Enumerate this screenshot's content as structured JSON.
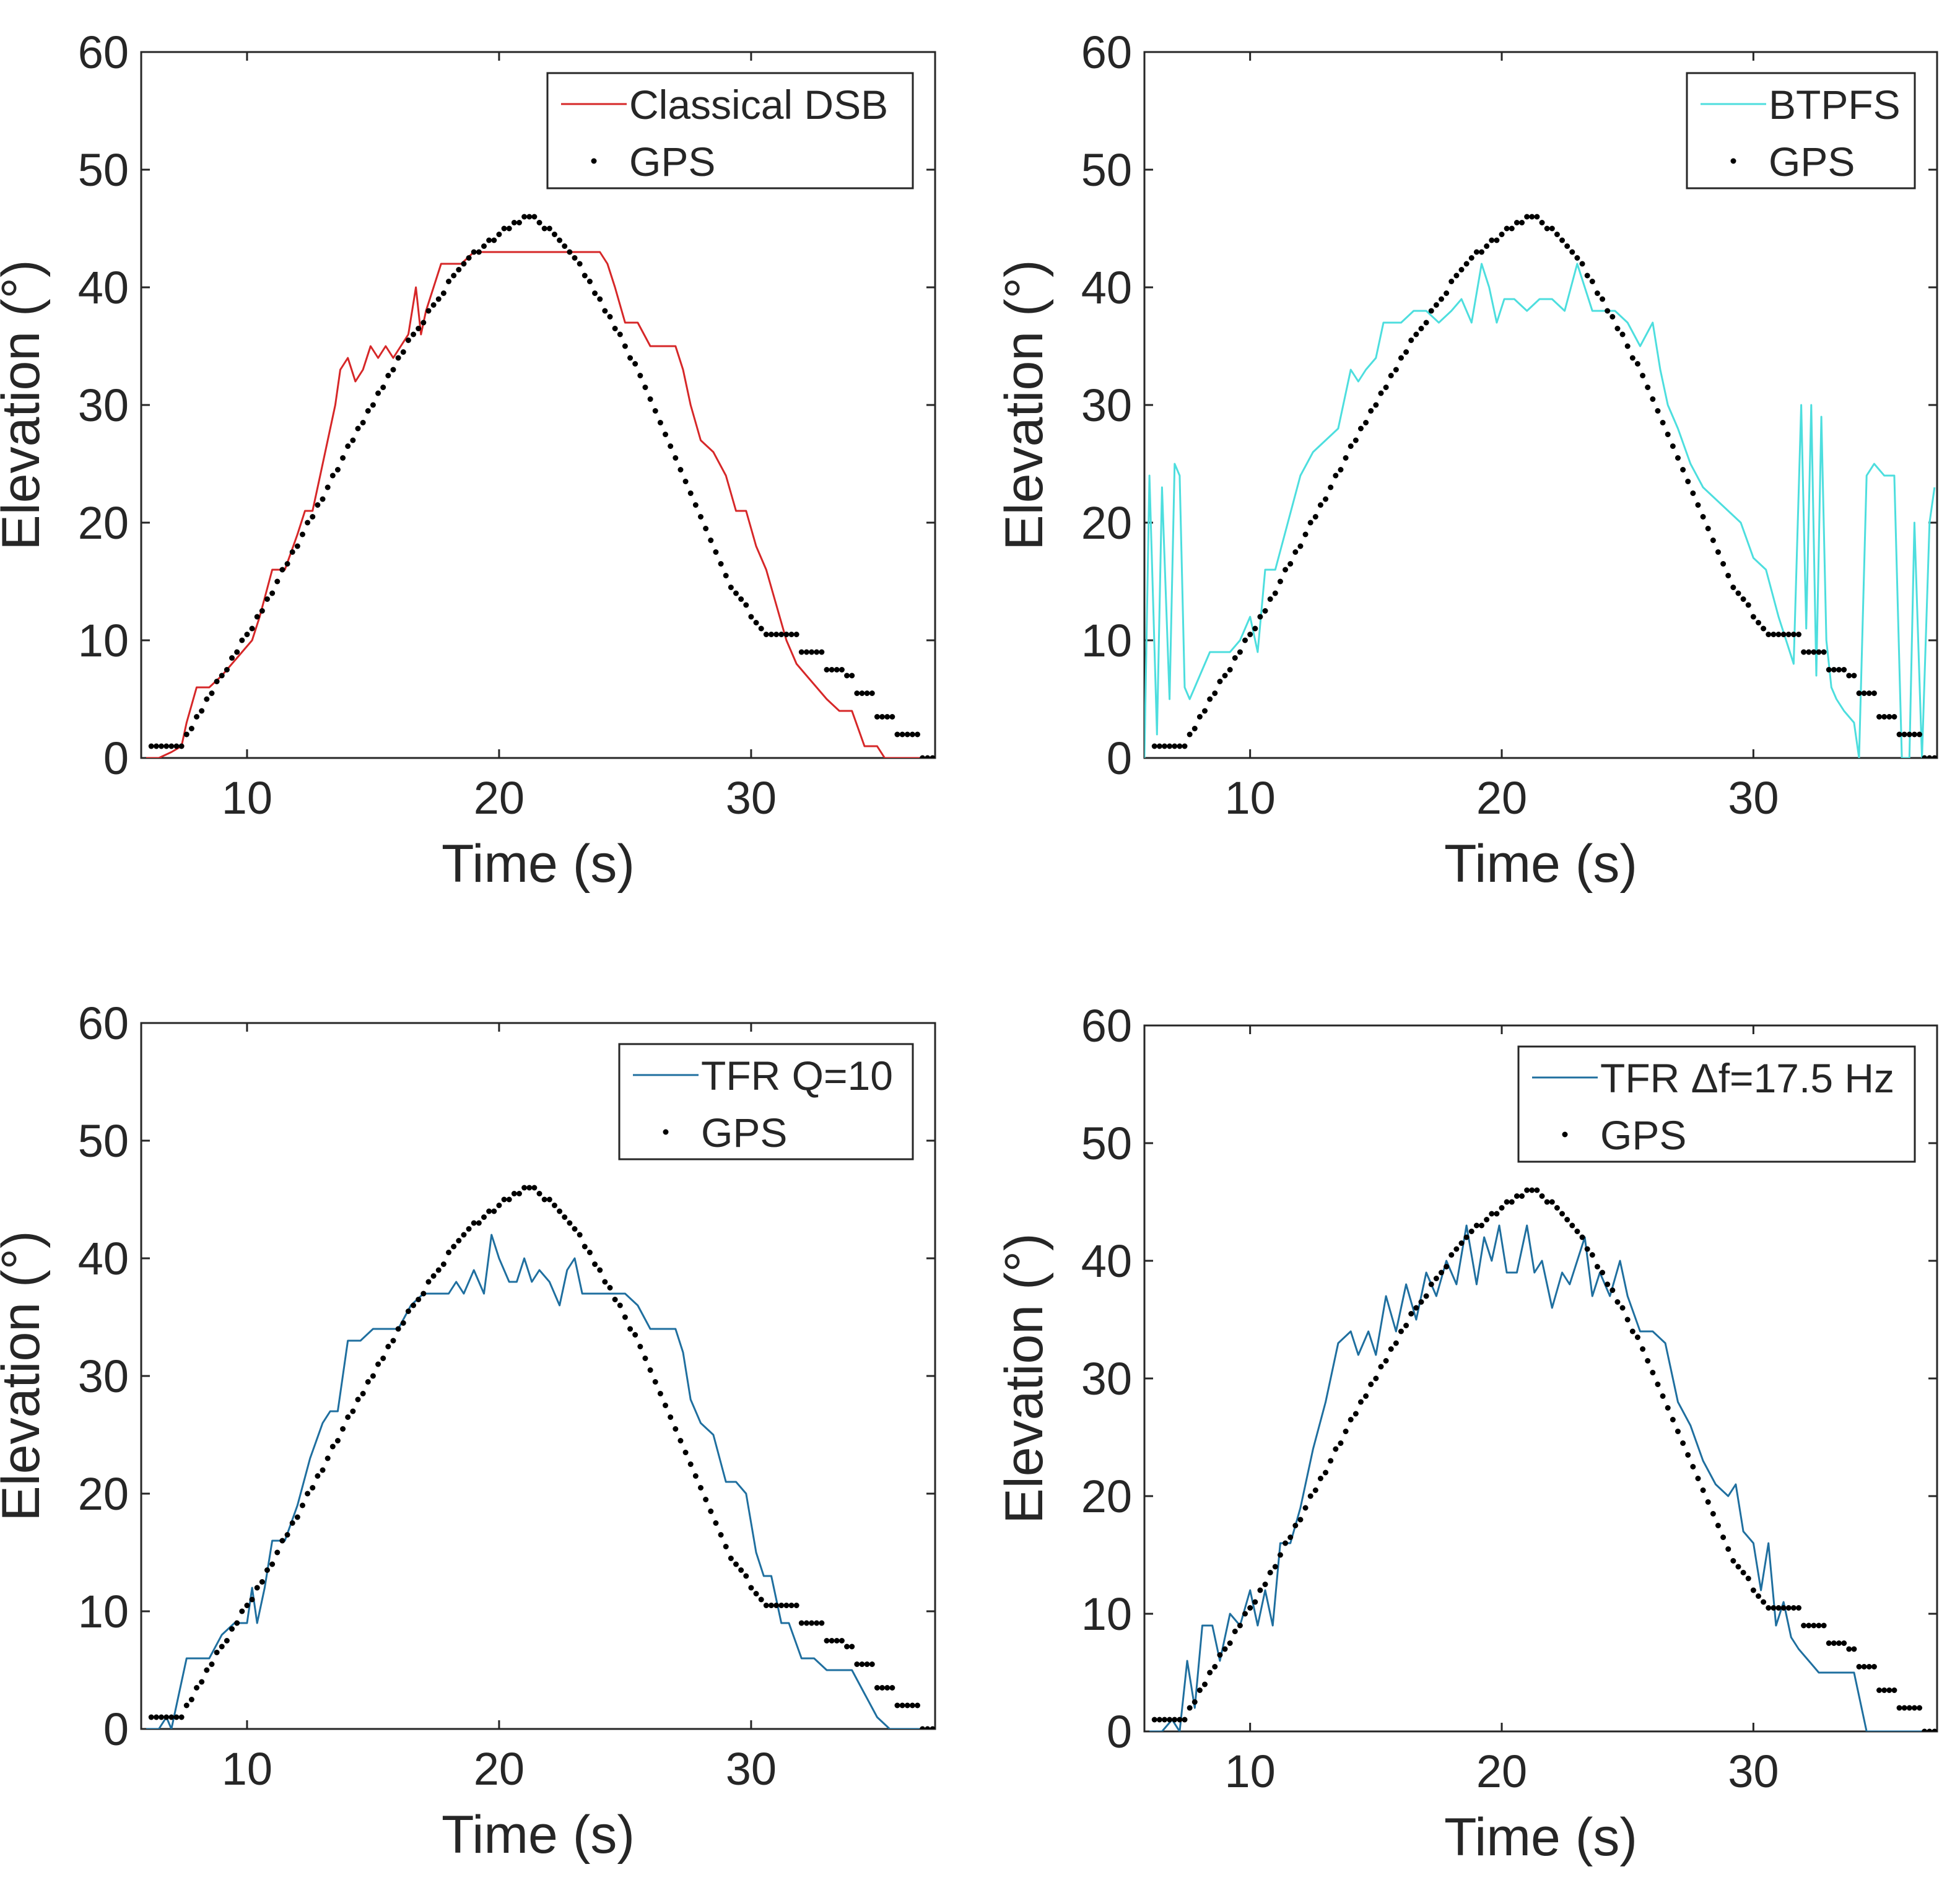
{
  "figure": {
    "description_free": true
  },
  "chart_data": [
    {
      "type": "line",
      "panel": "top-left",
      "xlabel": "Time (s)",
      "ylabel": "Elevation (°)",
      "xlim": [
        5.8,
        37.3
      ],
      "ylim": [
        0,
        60
      ],
      "xticks": [
        10,
        20,
        30
      ],
      "yticks": [
        0,
        10,
        20,
        30,
        40,
        50,
        60
      ],
      "legend_position": "top-right",
      "series": [
        {
          "name": "Classical DSB",
          "style": "line",
          "color": "#d62728",
          "x": [
            6.0,
            6.5,
            7.0,
            7.4,
            7.6,
            8.0,
            8.5,
            9.0,
            9.4,
            9.8,
            10.2,
            10.5,
            11.0,
            11.5,
            12.0,
            12.3,
            12.6,
            12.9,
            13.2,
            13.5,
            13.7,
            14.0,
            14.3,
            14.6,
            14.9,
            15.2,
            15.5,
            15.8,
            16.1,
            16.4,
            16.7,
            16.9,
            17.1,
            17.4,
            17.7,
            18.0,
            18.5,
            19.0,
            19.5,
            20.0,
            21.0,
            22.0,
            23.0,
            24.0,
            24.3,
            24.6,
            25.0,
            25.5,
            26.0,
            26.5,
            27.0,
            27.3,
            27.6,
            28.0,
            28.5,
            29.0,
            29.4,
            29.8,
            30.2,
            30.6,
            31.0,
            31.4,
            31.8,
            32.2,
            32.6,
            33.0,
            33.5,
            34.0,
            34.5,
            35.0,
            35.3,
            35.7,
            36.5,
            37.2
          ],
          "values": [
            0.0,
            0.0,
            0.5,
            1.0,
            3.0,
            6.0,
            6.0,
            7.0,
            8.0,
            9.0,
            10.0,
            12.0,
            16.0,
            16.0,
            19.0,
            21.0,
            21.0,
            24.0,
            27.0,
            30.0,
            33.0,
            34.0,
            32.0,
            33.0,
            35.0,
            34.0,
            35.0,
            34.0,
            35.0,
            36.0,
            40.0,
            36.0,
            38.0,
            40.0,
            42.0,
            42.0,
            42.0,
            43.0,
            43.0,
            43.0,
            43.0,
            43.0,
            43.0,
            43.0,
            42.0,
            40.0,
            37.0,
            37.0,
            35.0,
            35.0,
            35.0,
            33.0,
            30.0,
            27.0,
            26.0,
            24.0,
            21.0,
            21.0,
            18.0,
            16.0,
            13.0,
            10.0,
            8.0,
            7.0,
            6.0,
            5.0,
            4.0,
            4.0,
            1.0,
            1.0,
            0.0,
            0.0,
            0.0,
            0.0
          ]
        },
        {
          "name": "GPS",
          "style": "dots",
          "color": "#000000",
          "source": "gps"
        }
      ]
    },
    {
      "type": "line",
      "panel": "top-right",
      "xlabel": "Time (s)",
      "ylabel": "Elevation (°)",
      "xlim": [
        5.8,
        37.3
      ],
      "ylim": [
        0,
        60
      ],
      "xticks": [
        10,
        20,
        30
      ],
      "yticks": [
        0,
        10,
        20,
        30,
        40,
        50,
        60
      ],
      "legend_position": "top-right",
      "series": [
        {
          "name": "BTPFS",
          "style": "line",
          "color": "#4ddede",
          "x": [
            5.8,
            6.0,
            6.3,
            6.5,
            6.8,
            7.0,
            7.2,
            7.4,
            7.6,
            7.8,
            8.0,
            8.4,
            8.8,
            9.2,
            9.6,
            10.0,
            10.3,
            10.6,
            11.0,
            11.5,
            12.0,
            12.5,
            13.0,
            13.5,
            14.0,
            14.3,
            14.6,
            15.0,
            15.3,
            15.6,
            16.0,
            16.5,
            17.0,
            17.5,
            18.0,
            18.4,
            18.8,
            19.2,
            19.5,
            19.8,
            20.1,
            20.5,
            21.0,
            21.5,
            22.0,
            22.5,
            23.0,
            23.3,
            23.6,
            24.0,
            24.5,
            25.0,
            25.5,
            26.0,
            26.3,
            26.6,
            27.0,
            27.5,
            28.0,
            28.5,
            29.0,
            29.5,
            30.0,
            30.5,
            31.0,
            31.3,
            31.6,
            31.9,
            32.1,
            32.3,
            32.5,
            32.7,
            32.9,
            33.1,
            33.3,
            33.6,
            34.0,
            34.2,
            34.5,
            34.8,
            35.2,
            35.6,
            35.9,
            36.2,
            36.4,
            36.7,
            37.0,
            37.2
          ],
          "values": [
            0.0,
            24.0,
            2.0,
            23.0,
            5.0,
            25.0,
            24.0,
            6.0,
            5.0,
            6.0,
            7.0,
            9.0,
            9.0,
            9.0,
            10.0,
            12.0,
            9.0,
            16.0,
            16.0,
            20.0,
            24.0,
            26.0,
            27.0,
            28.0,
            33.0,
            32.0,
            33.0,
            34.0,
            37.0,
            37.0,
            37.0,
            38.0,
            38.0,
            37.0,
            38.0,
            39.0,
            37.0,
            42.0,
            40.0,
            37.0,
            39.0,
            39.0,
            38.0,
            39.0,
            39.0,
            38.0,
            42.0,
            40.0,
            38.0,
            38.0,
            38.0,
            37.0,
            35.0,
            37.0,
            33.0,
            30.0,
            28.0,
            25.0,
            23.0,
            22.0,
            21.0,
            20.0,
            17.0,
            16.0,
            12.0,
            10.0,
            8.0,
            30.0,
            11.0,
            30.0,
            7.0,
            29.0,
            10.0,
            6.0,
            5.0,
            4.0,
            3.0,
            0.0,
            24.0,
            25.0,
            24.0,
            24.0,
            0.0,
            0.0,
            20.0,
            0.0,
            20.0,
            23.0
          ]
        },
        {
          "name": "GPS",
          "style": "dots",
          "color": "#000000",
          "source": "gps"
        }
      ]
    },
    {
      "type": "line",
      "panel": "bottom-left",
      "xlabel": "Time (s)",
      "ylabel": "Elevation (°)",
      "xlim": [
        5.8,
        37.3
      ],
      "ylim": [
        0,
        60
      ],
      "xticks": [
        10,
        20,
        30
      ],
      "yticks": [
        0,
        10,
        20,
        30,
        40,
        50,
        60
      ],
      "legend_position": "top-right",
      "series": [
        {
          "name": "TFR Q=10",
          "style": "line",
          "color": "#1f6f9f",
          "x": [
            6.0,
            6.5,
            6.8,
            7.0,
            7.3,
            7.6,
            8.0,
            8.5,
            9.0,
            9.5,
            10.0,
            10.2,
            10.4,
            10.7,
            11.0,
            11.5,
            12.0,
            12.5,
            13.0,
            13.3,
            13.6,
            14.0,
            14.5,
            15.0,
            15.5,
            16.0,
            16.5,
            17.0,
            17.5,
            18.0,
            18.3,
            18.6,
            19.0,
            19.4,
            19.7,
            20.0,
            20.4,
            20.7,
            21.0,
            21.3,
            21.6,
            22.0,
            22.4,
            22.7,
            23.0,
            23.3,
            23.6,
            24.0,
            24.5,
            25.0,
            25.5,
            26.0,
            26.5,
            27.0,
            27.3,
            27.6,
            28.0,
            28.5,
            29.0,
            29.4,
            29.8,
            30.2,
            30.5,
            30.8,
            31.2,
            31.5,
            32.0,
            32.5,
            33.0,
            33.5,
            34.0,
            34.5,
            35.0,
            35.5,
            36.5,
            37.2
          ],
          "values": [
            0.0,
            0.0,
            1.0,
            0.0,
            3.0,
            6.0,
            6.0,
            6.0,
            8.0,
            9.0,
            9.0,
            12.0,
            9.0,
            12.0,
            16.0,
            16.0,
            19.0,
            23.0,
            26.0,
            27.0,
            27.0,
            33.0,
            33.0,
            34.0,
            34.0,
            34.0,
            36.0,
            37.0,
            37.0,
            37.0,
            38.0,
            37.0,
            39.0,
            37.0,
            42.0,
            40.0,
            38.0,
            38.0,
            40.0,
            38.0,
            39.0,
            38.0,
            36.0,
            39.0,
            40.0,
            37.0,
            37.0,
            37.0,
            37.0,
            37.0,
            36.0,
            34.0,
            34.0,
            34.0,
            32.0,
            28.0,
            26.0,
            25.0,
            21.0,
            21.0,
            20.0,
            15.0,
            13.0,
            13.0,
            9.0,
            9.0,
            6.0,
            6.0,
            5.0,
            5.0,
            5.0,
            3.0,
            1.0,
            0.0,
            0.0,
            0.0
          ]
        },
        {
          "name": "GPS",
          "style": "dots",
          "color": "#000000",
          "source": "gps"
        }
      ]
    },
    {
      "type": "line",
      "panel": "bottom-right",
      "xlabel": "Time (s)",
      "ylabel": "Elevation (°)",
      "xlim": [
        5.8,
        37.3
      ],
      "ylim": [
        0,
        60
      ],
      "xticks": [
        10,
        20,
        30
      ],
      "yticks": [
        0,
        10,
        20,
        30,
        40,
        50,
        60
      ],
      "legend_position": "top-right",
      "series": [
        {
          "name": "TFR Δf=17.5 Hz",
          "style": "line",
          "color": "#1f6f9f",
          "x": [
            6.0,
            6.5,
            6.9,
            7.2,
            7.5,
            7.8,
            8.1,
            8.5,
            8.8,
            9.2,
            9.6,
            10.0,
            10.3,
            10.6,
            10.9,
            11.2,
            11.6,
            12.0,
            12.5,
            13.0,
            13.5,
            14.0,
            14.3,
            14.7,
            15.0,
            15.4,
            15.8,
            16.2,
            16.6,
            17.0,
            17.4,
            17.8,
            18.2,
            18.6,
            19.0,
            19.3,
            19.6,
            19.9,
            20.2,
            20.6,
            21.0,
            21.3,
            21.6,
            22.0,
            22.4,
            22.7,
            23.0,
            23.3,
            23.6,
            23.9,
            24.3,
            24.7,
            25.0,
            25.5,
            26.0,
            26.5,
            27.0,
            27.5,
            28.0,
            28.5,
            29.0,
            29.3,
            29.6,
            30.0,
            30.3,
            30.6,
            30.9,
            31.2,
            31.5,
            31.8,
            32.2,
            32.6,
            33.0,
            33.5,
            34.0,
            34.5,
            35.0,
            36.0,
            37.2
          ],
          "values": [
            0.0,
            0.0,
            1.0,
            0.0,
            6.0,
            2.0,
            9.0,
            9.0,
            6.0,
            10.0,
            9.0,
            12.0,
            9.0,
            12.0,
            9.0,
            16.0,
            16.0,
            19.0,
            24.0,
            28.0,
            33.0,
            34.0,
            32.0,
            34.0,
            32.0,
            37.0,
            34.0,
            38.0,
            35.0,
            39.0,
            37.0,
            40.0,
            38.0,
            43.0,
            38.0,
            42.0,
            40.0,
            43.0,
            39.0,
            39.0,
            43.0,
            39.0,
            40.0,
            36.0,
            39.0,
            38.0,
            40.0,
            42.0,
            37.0,
            39.0,
            37.0,
            40.0,
            37.0,
            34.0,
            34.0,
            33.0,
            28.0,
            26.0,
            23.0,
            21.0,
            20.0,
            21.0,
            17.0,
            16.0,
            12.0,
            16.0,
            9.0,
            11.0,
            8.0,
            7.0,
            6.0,
            5.0,
            5.0,
            5.0,
            5.0,
            0.0,
            0.0,
            0.0,
            0.0
          ]
        },
        {
          "name": "GPS",
          "style": "dots",
          "color": "#000000",
          "source": "gps"
        }
      ]
    }
  ],
  "gps": {
    "x": [
      6.2,
      6.4,
      6.6,
      6.8,
      7.0,
      7.2,
      7.4,
      7.6,
      7.8,
      8.0,
      8.2,
      8.4,
      8.6,
      8.8,
      9.0,
      9.2,
      9.4,
      9.6,
      9.8,
      10.0,
      10.2,
      10.4,
      10.6,
      10.8,
      11.0,
      11.2,
      11.4,
      11.6,
      11.8,
      12.0,
      12.2,
      12.4,
      12.6,
      12.8,
      13.0,
      13.2,
      13.4,
      13.6,
      13.8,
      14.0,
      14.2,
      14.4,
      14.6,
      14.8,
      15.0,
      15.2,
      15.4,
      15.6,
      15.8,
      16.0,
      16.2,
      16.4,
      16.6,
      16.8,
      17.0,
      17.2,
      17.4,
      17.6,
      17.8,
      18.0,
      18.2,
      18.4,
      18.6,
      18.8,
      19.0,
      19.2,
      19.4,
      19.6,
      19.8,
      20.0,
      20.2,
      20.4,
      20.6,
      20.8,
      21.0,
      21.2,
      21.4,
      21.6,
      21.8,
      22.0,
      22.2,
      22.4,
      22.6,
      22.8,
      23.0,
      23.2,
      23.4,
      23.6,
      23.8,
      24.0,
      24.2,
      24.4,
      24.6,
      24.8,
      25.0,
      25.2,
      25.4,
      25.6,
      25.8,
      26.0,
      26.2,
      26.4,
      26.6,
      26.8,
      27.0,
      27.2,
      27.4,
      27.6,
      27.8,
      28.0,
      28.2,
      28.4,
      28.6,
      28.8,
      29.0,
      29.2,
      29.4,
      29.6,
      29.8,
      30.0,
      30.2,
      30.4,
      30.6,
      30.8,
      31.0,
      31.2,
      31.4,
      31.6,
      31.8,
      32.0,
      32.2,
      32.4,
      32.6,
      32.8,
      33.0,
      33.2,
      33.4,
      33.6,
      33.8,
      34.0,
      34.2,
      34.4,
      34.6,
      34.8,
      35.0,
      35.2,
      35.4,
      35.6,
      35.8,
      36.0,
      36.2,
      36.4,
      36.6,
      36.8,
      37.0,
      37.2
    ],
    "values": [
      1.0,
      1.0,
      1.0,
      1.0,
      1.0,
      1.0,
      1.0,
      2.0,
      2.5,
      3.5,
      4.0,
      5.0,
      5.5,
      6.5,
      7.0,
      7.5,
      8.5,
      9.0,
      10.0,
      10.5,
      11.0,
      12.0,
      12.5,
      13.5,
      14.0,
      15.0,
      16.0,
      16.5,
      17.5,
      18.0,
      19.0,
      20.0,
      20.5,
      21.5,
      22.0,
      23.0,
      24.0,
      24.5,
      25.5,
      26.5,
      27.0,
      28.0,
      28.5,
      29.5,
      30.0,
      31.0,
      31.5,
      32.5,
      33.0,
      34.0,
      34.5,
      35.5,
      36.0,
      36.5,
      37.0,
      38.0,
      38.5,
      39.0,
      39.5,
      40.5,
      41.0,
      41.5,
      42.0,
      42.5,
      43.0,
      43.0,
      43.5,
      44.0,
      44.0,
      44.5,
      45.0,
      45.0,
      45.5,
      45.5,
      46.0,
      46.0,
      46.0,
      45.5,
      45.0,
      45.0,
      44.5,
      44.0,
      43.5,
      43.0,
      42.5,
      42.0,
      41.0,
      40.5,
      39.5,
      39.0,
      38.0,
      37.5,
      36.5,
      36.0,
      35.0,
      34.0,
      33.5,
      32.5,
      31.5,
      30.5,
      29.5,
      28.5,
      27.5,
      26.5,
      25.5,
      24.5,
      23.5,
      22.5,
      21.5,
      20.5,
      19.5,
      18.5,
      17.5,
      16.5,
      15.5,
      14.5,
      14.0,
      13.5,
      13.0,
      12.0,
      11.5,
      11.0,
      10.5,
      10.5,
      10.5,
      10.5,
      10.5,
      10.5,
      10.5,
      9.0,
      9.0,
      9.0,
      9.0,
      9.0,
      7.5,
      7.5,
      7.5,
      7.5,
      7.0,
      7.0,
      5.5,
      5.5,
      5.5,
      5.5,
      3.5,
      3.5,
      3.5,
      3.5,
      2.0,
      2.0,
      2.0,
      2.0,
      2.0,
      0.0,
      0.0,
      0.0
    ]
  }
}
